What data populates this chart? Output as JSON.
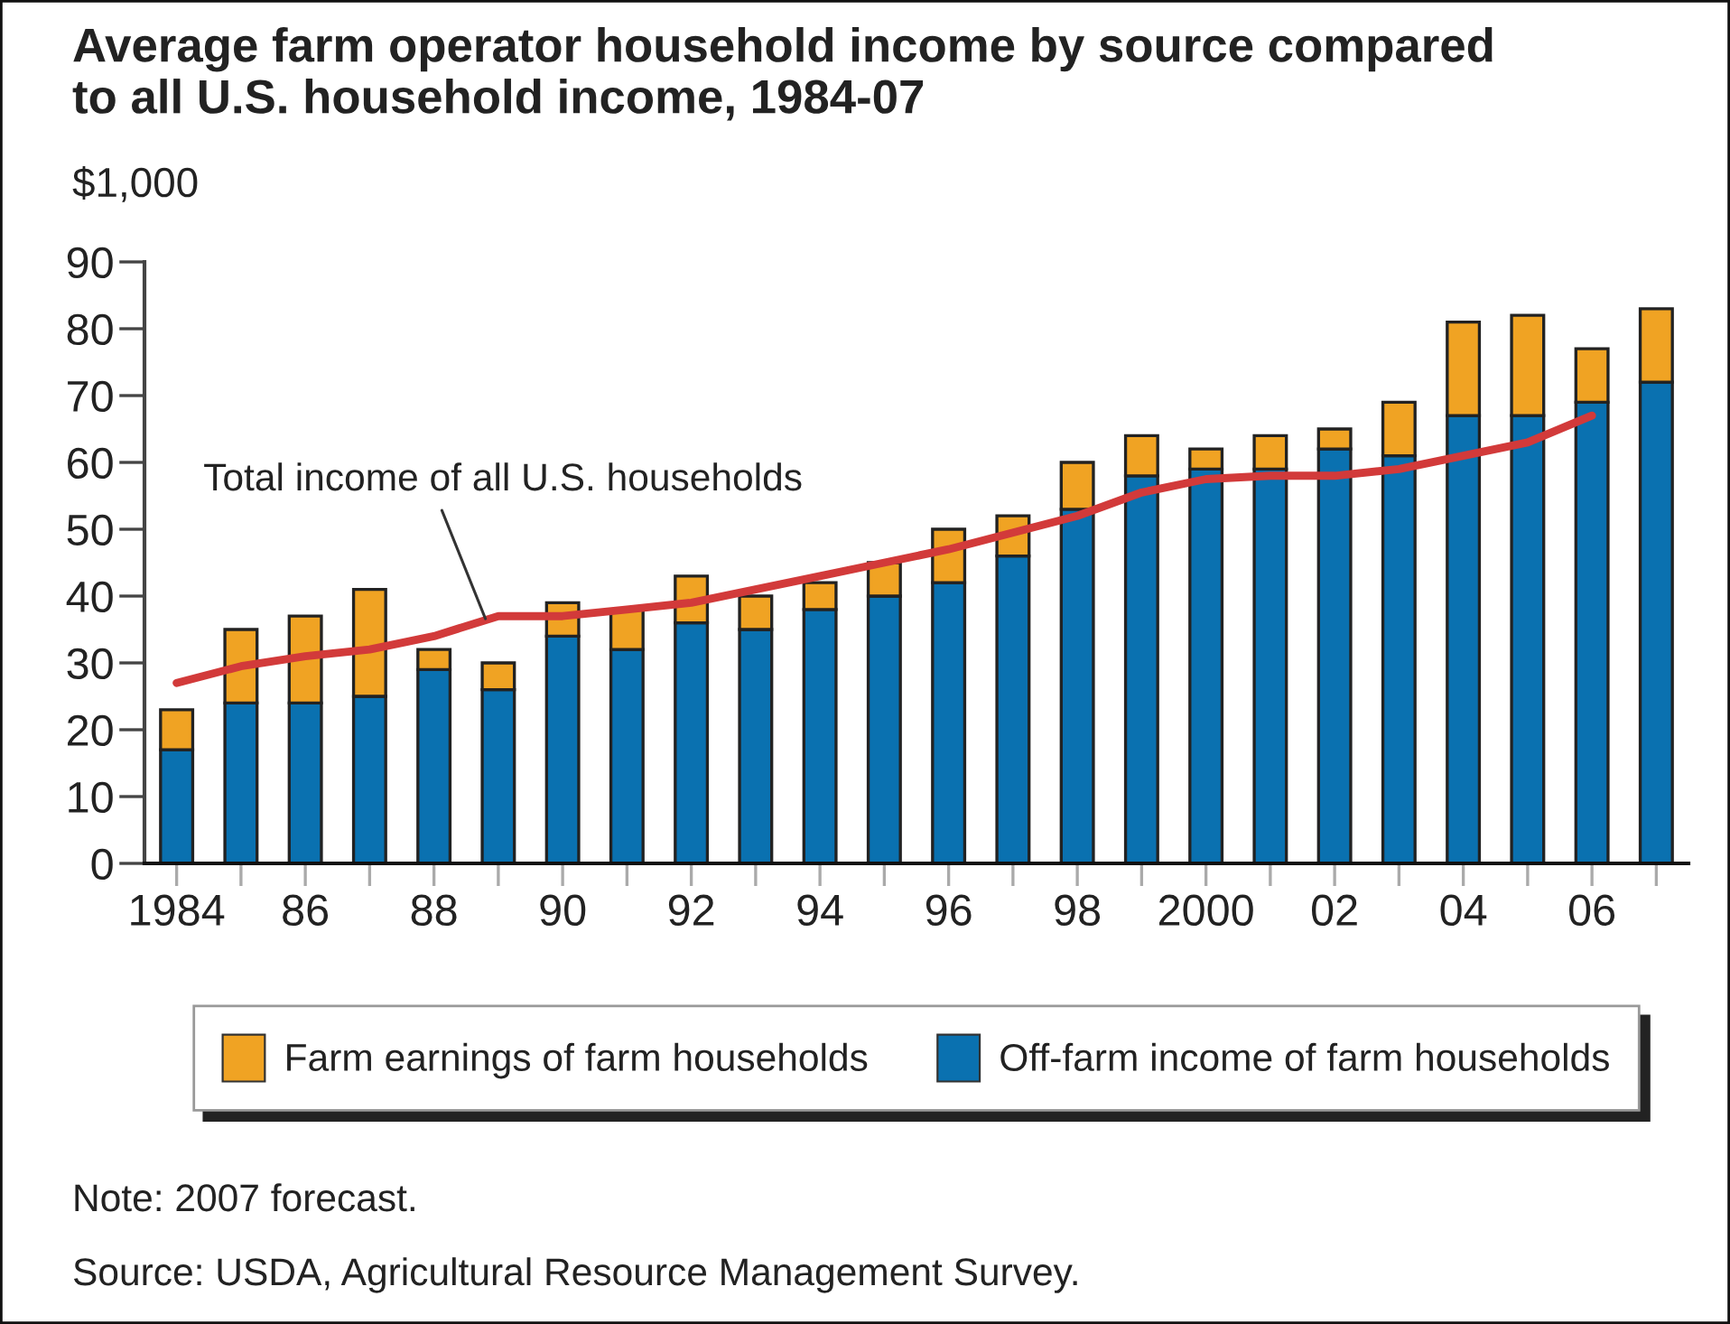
{
  "chart_data": {
    "type": "bar",
    "stacked": true,
    "title": "Average farm operator household income by source compared to all U.S. household income, 1984-07",
    "ylabel": "$1,000",
    "x": [
      1984,
      1985,
      1986,
      1987,
      1988,
      1989,
      1990,
      1991,
      1992,
      1993,
      1994,
      1995,
      1996,
      1997,
      1998,
      1999,
      2000,
      2001,
      2002,
      2003,
      2004,
      2005,
      2006,
      2007
    ],
    "series": [
      {
        "name": "Off-farm income of farm households",
        "color": "#0a71b0",
        "values": [
          17,
          24,
          24,
          25,
          29,
          26,
          34,
          32,
          36,
          35,
          38,
          40,
          42,
          46,
          53,
          58,
          59,
          59,
          62,
          61,
          67,
          67,
          69,
          72
        ]
      },
      {
        "name": "Farm earnings of farm households",
        "color": "#f0a323",
        "values": [
          6,
          11,
          13,
          16,
          3,
          4,
          5,
          6,
          7,
          5,
          4,
          5,
          8,
          6,
          7,
          6,
          3,
          5,
          3,
          8,
          14,
          15,
          8,
          11
        ]
      },
      {
        "type": "line",
        "color": "#d23a3a",
        "x": [
          1984,
          1985,
          1986,
          1987,
          1988,
          1989,
          1990,
          1991,
          1992,
          1993,
          1994,
          1995,
          1996,
          1997,
          1998,
          1999,
          2000,
          2001,
          2002,
          2003,
          2004,
          2005,
          2006
        ],
        "values": [
          27,
          29.5,
          31,
          32,
          34,
          37,
          37,
          38,
          39,
          41,
          43,
          45,
          47,
          49.5,
          52,
          55.5,
          57.5,
          58,
          58,
          59,
          61,
          63,
          67
        ]
      }
    ],
    "xlim": [
      1983.5,
      2007.5
    ],
    "xticks": [
      {
        "value": 1984,
        "label": "1984"
      },
      {
        "value": 1985,
        "label": null
      },
      {
        "value": 1986,
        "label": "86"
      },
      {
        "value": 1987,
        "label": null
      },
      {
        "value": 1988,
        "label": "88"
      },
      {
        "value": 1989,
        "label": null
      },
      {
        "value": 1990,
        "label": "90"
      },
      {
        "value": 1991,
        "label": null
      },
      {
        "value": 1992,
        "label": "92"
      },
      {
        "value": 1993,
        "label": null
      },
      {
        "value": 1994,
        "label": "94"
      },
      {
        "value": 1995,
        "label": null
      },
      {
        "value": 1996,
        "label": "96"
      },
      {
        "value": 1997,
        "label": null
      },
      {
        "value": 1998,
        "label": "98"
      },
      {
        "value": 1999,
        "label": null
      },
      {
        "value": 2000,
        "label": "2000"
      },
      {
        "value": 2001,
        "label": null
      },
      {
        "value": 2002,
        "label": "02"
      },
      {
        "value": 2003,
        "label": null
      },
      {
        "value": 2004,
        "label": "04"
      },
      {
        "value": 2005,
        "label": null
      },
      {
        "value": 2006,
        "label": "06"
      },
      {
        "value": 2007,
        "label": null
      }
    ],
    "ylim": [
      0,
      90
    ],
    "yticks": [
      0,
      10,
      20,
      30,
      40,
      50,
      60,
      70,
      80,
      90
    ],
    "legend": "bottom",
    "annotations": [
      {
        "text": "Total income of all U.S. households",
        "x": 1988.8,
        "y": 36.6
      },
      "Note: 2007 forecast.",
      "Source: USDA, Agricultural Resource Management Survey."
    ]
  }
}
